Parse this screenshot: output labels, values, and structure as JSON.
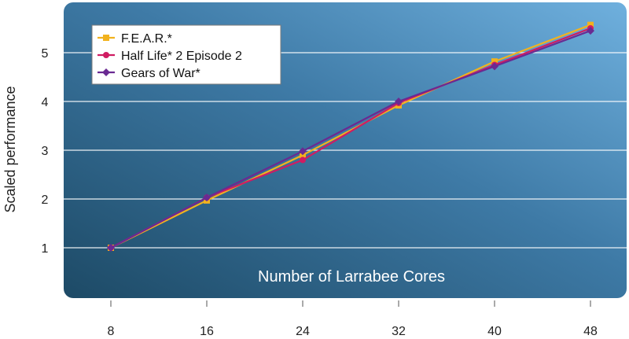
{
  "chart_data": {
    "type": "line",
    "title": "",
    "xlabel": "Number of Larrabee Cores",
    "ylabel": "Scaled performance",
    "x": [
      8,
      16,
      24,
      32,
      40,
      48
    ],
    "xlim": [
      8,
      48
    ],
    "ylim": [
      0.7,
      6.3
    ],
    "yticks": [
      1,
      2,
      3,
      4,
      5
    ],
    "grid": true,
    "legend_position": "top-left",
    "series": [
      {
        "name": "F.E.A.R.*",
        "color": "#f2b21e",
        "marker": "square",
        "values": [
          1.0,
          1.97,
          2.9,
          3.92,
          4.82,
          5.57
        ]
      },
      {
        "name": "Half Life* 2 Episode 2",
        "color": "#d01c62",
        "marker": "circle",
        "values": [
          1.0,
          2.03,
          2.8,
          3.97,
          4.75,
          5.5
        ]
      },
      {
        "name": "Gears of War*",
        "color": "#6a2a92",
        "marker": "diamond",
        "values": [
          1.0,
          2.03,
          2.98,
          4.0,
          4.72,
          5.45
        ]
      }
    ]
  }
}
